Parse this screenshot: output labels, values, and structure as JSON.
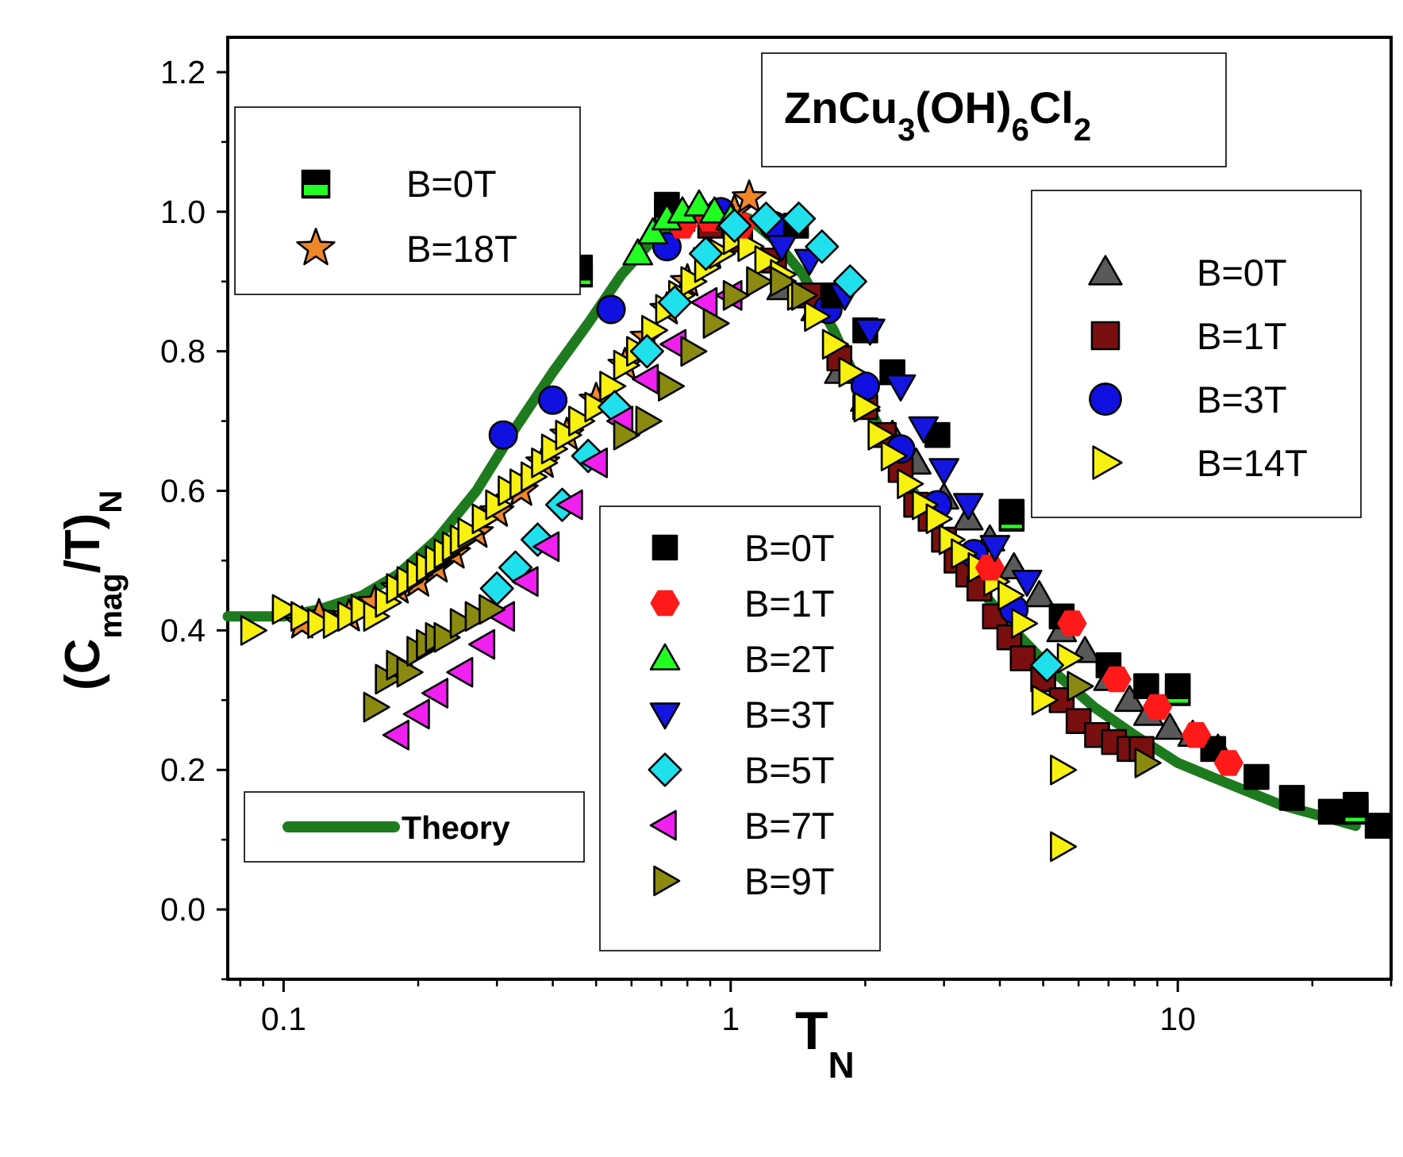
{
  "chart_data": {
    "type": "scatter",
    "title": "",
    "formula": {
      "parts": [
        "ZnCu",
        "3",
        "(OH)",
        "6",
        "Cl",
        "2"
      ]
    },
    "xlabel": {
      "main": "T",
      "sub": "N"
    },
    "ylabel": {
      "p1": "(C",
      "sub1": "mag",
      "p2": "/T)",
      "sub2": "N"
    },
    "x_scale": "log",
    "xlim": [
      0.075,
      30
    ],
    "ylim": [
      -0.1,
      1.25
    ],
    "x_ticks": [
      0.1,
      1,
      10
    ],
    "x_tick_labels": [
      "0.1",
      "1",
      "10"
    ],
    "y_ticks": [
      0.0,
      0.2,
      0.4,
      0.6,
      0.8,
      1.0,
      1.2
    ],
    "y_tick_labels": [
      "0.0",
      "0.2",
      "0.4",
      "0.6",
      "0.8",
      "1.0",
      "1.2"
    ],
    "legend_top_left": [
      {
        "label": "B=0T",
        "marker": "square-green",
        "color": "#000000"
      },
      {
        "label": "B=18T",
        "marker": "star",
        "color": "#f0862a"
      }
    ],
    "legend_right": [
      {
        "label": "B=0T",
        "marker": "triangle-up",
        "color": "#595959"
      },
      {
        "label": "B=1T",
        "marker": "square",
        "color": "#7a0f0f"
      },
      {
        "label": "B=3T",
        "marker": "circle",
        "color": "#1010e0"
      },
      {
        "label": "B=14T",
        "marker": "triangle-right",
        "color": "#f8f010"
      }
    ],
    "legend_middle": [
      {
        "label": "B=0T",
        "marker": "square",
        "color": "#000000"
      },
      {
        "label": "B=1T",
        "marker": "hexagon",
        "color": "#ff1a1a"
      },
      {
        "label": "B=2T",
        "marker": "triangle-up",
        "color": "#22ff22"
      },
      {
        "label": "B=3T",
        "marker": "triangle-down",
        "color": "#1515e0"
      },
      {
        "label": "B=5T",
        "marker": "diamond",
        "color": "#20e0ee"
      },
      {
        "label": "B=7T",
        "marker": "triangle-left",
        "color": "#f020f0"
      },
      {
        "label": "B=9T",
        "marker": "triangle-right",
        "color": "#8a8a10"
      }
    ],
    "legend_theory": {
      "label": "Theory",
      "color": "#1e7a1e"
    },
    "series": [
      {
        "name": "B=0T (green)",
        "marker": "square-green",
        "color": "#000000",
        "x": [
          0.46,
          0.72,
          4.25,
          10.0,
          25.0
        ],
        "y": [
          0.91,
          1.0,
          0.56,
          0.31,
          0.14
        ]
      },
      {
        "name": "B=18T",
        "marker": "star",
        "color": "#f0862a",
        "x": [
          0.11,
          0.12,
          0.14,
          0.16,
          0.18,
          0.2,
          0.22,
          0.24,
          0.27,
          0.3,
          0.34,
          0.38,
          0.43,
          0.5,
          0.58,
          0.65,
          0.72,
          0.8,
          0.9,
          1.02,
          1.1
        ],
        "y": [
          0.41,
          0.42,
          0.42,
          0.44,
          0.46,
          0.47,
          0.49,
          0.51,
          0.54,
          0.57,
          0.6,
          0.64,
          0.68,
          0.73,
          0.78,
          0.82,
          0.86,
          0.9,
          0.94,
          1.0,
          1.02
        ]
      },
      {
        "name": "B=0T (triangle)",
        "marker": "triangle-up",
        "color": "#595959",
        "x": [
          1.3,
          1.55,
          1.75,
          2.0,
          2.3,
          2.6,
          3.0,
          3.4,
          3.8,
          4.3,
          4.9,
          5.5,
          6.2,
          7.0,
          7.8,
          8.6,
          9.6,
          10.8,
          12.3
        ],
        "y": [
          0.89,
          0.86,
          0.77,
          0.73,
          0.68,
          0.64,
          0.59,
          0.56,
          0.53,
          0.49,
          0.45,
          0.4,
          0.37,
          0.33,
          0.3,
          0.28,
          0.26,
          0.25,
          0.23
        ]
      },
      {
        "name": "B=1T (square)",
        "marker": "square",
        "color": "#7a0f0f",
        "x": [
          0.78,
          0.9,
          1.05,
          1.25,
          1.5,
          1.75,
          2.0,
          2.2,
          2.4,
          2.6,
          2.8,
          3.0,
          3.2,
          3.4,
          3.6,
          3.9,
          4.2,
          4.5,
          5.0,
          5.5,
          6.0,
          6.6,
          7.2,
          7.8,
          8.3
        ],
        "y": [
          0.99,
          0.98,
          0.96,
          0.93,
          0.88,
          0.79,
          0.72,
          0.68,
          0.63,
          0.58,
          0.56,
          0.53,
          0.5,
          0.48,
          0.46,
          0.42,
          0.39,
          0.36,
          0.33,
          0.3,
          0.27,
          0.25,
          0.24,
          0.23,
          0.23
        ]
      },
      {
        "name": "B=3T (circle)",
        "marker": "circle",
        "color": "#1010e0",
        "x": [
          0.31,
          0.4,
          0.54,
          0.72,
          0.95,
          1.25,
          1.65,
          2.0,
          2.4,
          2.9,
          3.5,
          4.3
        ],
        "y": [
          0.68,
          0.73,
          0.86,
          0.95,
          1.0,
          0.98,
          0.86,
          0.75,
          0.66,
          0.58,
          0.51,
          0.43
        ]
      },
      {
        "name": "B=14T",
        "marker": "triangle-right",
        "color": "#f8f010",
        "x": [
          0.085,
          0.1,
          0.11,
          0.12,
          0.13,
          0.14,
          0.15,
          0.16,
          0.17,
          0.18,
          0.19,
          0.2,
          0.21,
          0.22,
          0.23,
          0.24,
          0.25,
          0.26,
          0.28,
          0.3,
          0.32,
          0.34,
          0.36,
          0.38,
          0.4,
          0.43,
          0.46,
          0.5,
          0.54,
          0.58,
          0.62,
          0.67,
          0.72,
          0.77,
          0.82,
          0.88,
          0.95,
          1.02,
          1.1,
          1.2,
          1.3,
          1.42,
          1.55,
          1.7,
          1.85,
          2.0,
          2.15,
          2.3,
          2.5,
          2.7,
          2.9,
          3.1,
          3.3,
          3.6,
          3.9,
          4.2,
          4.5,
          5.0,
          5.5,
          5.5,
          5.7
        ],
        "y": [
          0.4,
          0.43,
          0.42,
          0.41,
          0.41,
          0.42,
          0.43,
          0.42,
          0.44,
          0.46,
          0.47,
          0.48,
          0.49,
          0.5,
          0.51,
          0.52,
          0.53,
          0.54,
          0.56,
          0.58,
          0.6,
          0.61,
          0.62,
          0.64,
          0.66,
          0.68,
          0.7,
          0.72,
          0.75,
          0.78,
          0.8,
          0.83,
          0.86,
          0.88,
          0.9,
          0.92,
          0.94,
          0.96,
          0.95,
          0.93,
          0.91,
          0.88,
          0.85,
          0.81,
          0.77,
          0.72,
          0.68,
          0.65,
          0.61,
          0.58,
          0.56,
          0.53,
          0.51,
          0.49,
          0.47,
          0.45,
          0.41,
          0.3,
          0.2,
          0.09,
          0.36
        ]
      },
      {
        "name": "B=0T (black)",
        "marker": "square",
        "color": "#000000",
        "x": [
          0.46,
          0.72,
          1.4,
          1.7,
          2.0,
          2.3,
          2.9,
          4.25,
          5.5,
          7.0,
          8.5,
          10.0,
          12.0,
          15.0,
          18.0,
          22.0,
          25.0,
          28.0
        ],
        "y": [
          0.92,
          1.01,
          0.98,
          0.88,
          0.83,
          0.77,
          0.68,
          0.57,
          0.42,
          0.35,
          0.32,
          0.32,
          0.23,
          0.19,
          0.16,
          0.14,
          0.15,
          0.12
        ]
      },
      {
        "name": "B=1T (hexagon)",
        "marker": "hexagon",
        "color": "#ff1a1a",
        "x": [
          0.78,
          0.9,
          1.05,
          3.8,
          5.8,
          7.3,
          9.0,
          11.0,
          13.0
        ],
        "y": [
          0.98,
          0.99,
          0.98,
          0.49,
          0.41,
          0.33,
          0.29,
          0.25,
          0.21
        ]
      },
      {
        "name": "B=2T",
        "marker": "triangle-up",
        "color": "#22ff22",
        "x": [
          0.62,
          0.67,
          0.72,
          0.78,
          0.85,
          0.92,
          1.0
        ],
        "y": [
          0.94,
          0.97,
          0.99,
          1.0,
          1.01,
          1.0,
          0.99
        ]
      },
      {
        "name": "B=3T (triangle-down)",
        "marker": "triangle-down",
        "color": "#1515e0",
        "x": [
          1.3,
          1.5,
          1.8,
          2.05,
          2.4,
          2.7,
          3.0,
          3.4,
          3.9,
          4.6
        ],
        "y": [
          0.95,
          0.93,
          0.88,
          0.83,
          0.75,
          0.69,
          0.63,
          0.58,
          0.52,
          0.47
        ]
      },
      {
        "name": "B=5T",
        "marker": "diamond",
        "color": "#20e0ee",
        "x": [
          0.3,
          0.33,
          0.37,
          0.42,
          0.48,
          0.55,
          0.65,
          0.75,
          0.88,
          1.02,
          1.2,
          1.42,
          1.6,
          1.85,
          5.1
        ],
        "y": [
          0.46,
          0.49,
          0.53,
          0.58,
          0.65,
          0.72,
          0.8,
          0.87,
          0.94,
          0.98,
          0.99,
          0.99,
          0.95,
          0.9,
          0.35
        ]
      },
      {
        "name": "B=7T",
        "marker": "triangle-left",
        "color": "#f020f0",
        "x": [
          0.18,
          0.2,
          0.22,
          0.25,
          0.28,
          0.31,
          0.35,
          0.39,
          0.44,
          0.5,
          0.57,
          0.65,
          0.75,
          0.88,
          1.0
        ],
        "y": [
          0.25,
          0.28,
          0.31,
          0.34,
          0.38,
          0.42,
          0.47,
          0.52,
          0.58,
          0.64,
          0.7,
          0.76,
          0.81,
          0.87,
          0.88
        ]
      },
      {
        "name": "B=9T",
        "marker": "triangle-right",
        "color": "#8a8a10",
        "x": [
          0.16,
          0.17,
          0.18,
          0.19,
          0.2,
          0.21,
          0.22,
          0.23,
          0.25,
          0.27,
          0.29,
          0.58,
          0.65,
          0.73,
          0.82,
          0.92,
          1.02,
          1.15,
          1.3,
          1.45,
          6.0,
          8.5
        ],
        "y": [
          0.29,
          0.33,
          0.35,
          0.34,
          0.37,
          0.38,
          0.39,
          0.39,
          0.41,
          0.42,
          0.43,
          0.68,
          0.7,
          0.75,
          0.8,
          0.84,
          0.88,
          0.9,
          0.9,
          0.88,
          0.32,
          0.21
        ]
      }
    ],
    "theory_curve": {
      "name": "Theory",
      "color": "#1e7a1e",
      "x": [
        0.075,
        0.09,
        0.1,
        0.12,
        0.15,
        0.18,
        0.22,
        0.27,
        0.33,
        0.4,
        0.48,
        0.57,
        0.67,
        0.78,
        0.9,
        1.0,
        1.1,
        1.25,
        1.45,
        1.7,
        2.0,
        2.4,
        2.9,
        3.5,
        4.3,
        5.3,
        6.5,
        8.0,
        10.0,
        13.0,
        17.0,
        22.0,
        25.0
      ],
      "y": [
        0.42,
        0.42,
        0.42,
        0.43,
        0.45,
        0.48,
        0.53,
        0.6,
        0.69,
        0.77,
        0.84,
        0.91,
        0.96,
        0.99,
        1.0,
        1.0,
        0.99,
        0.96,
        0.91,
        0.83,
        0.73,
        0.63,
        0.54,
        0.47,
        0.4,
        0.34,
        0.29,
        0.25,
        0.21,
        0.18,
        0.15,
        0.13,
        0.12
      ]
    }
  }
}
